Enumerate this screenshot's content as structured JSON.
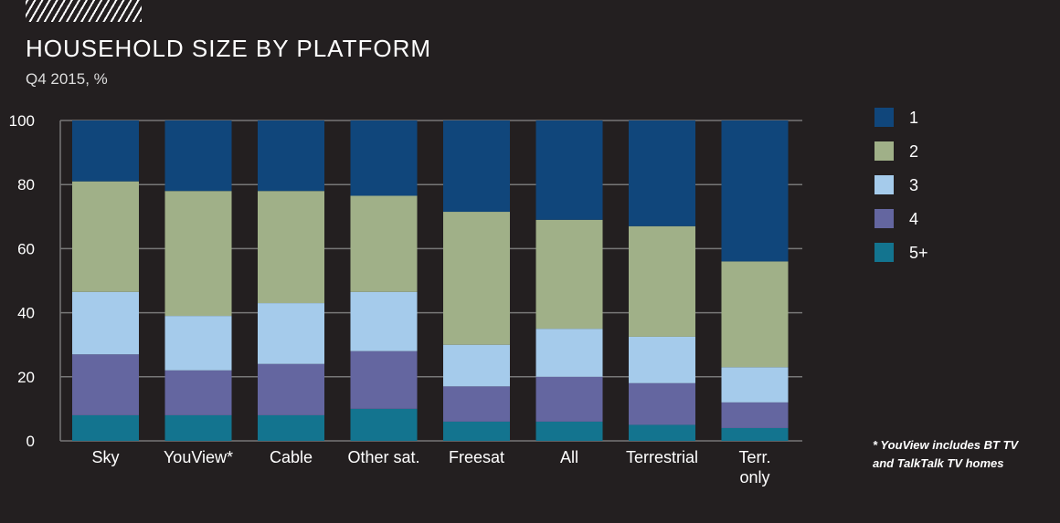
{
  "chart_data": {
    "type": "bar",
    "stacked": true,
    "title": "HOUSEHOLD SIZE BY PLATFORM",
    "subtitle": "Q4 2015, %",
    "categories": [
      "Sky",
      "YouView*",
      "Cable",
      "Other sat.",
      "Freesat",
      "All",
      "Terrestrial",
      "Terr. only"
    ],
    "series": [
      {
        "name": "5+",
        "color": "#13748f",
        "values": [
          8,
          8,
          8,
          10,
          6,
          6,
          5,
          4
        ]
      },
      {
        "name": "4",
        "color": "#6466a0",
        "values": [
          19,
          14,
          16,
          18,
          11,
          14,
          13,
          8
        ]
      },
      {
        "name": "3",
        "color": "#a5cbeb",
        "values": [
          19.5,
          17,
          19,
          18.5,
          13,
          15,
          14.5,
          11
        ]
      },
      {
        "name": "2",
        "color": "#a0b088",
        "values": [
          34.5,
          39,
          35,
          30,
          41.5,
          34,
          34.5,
          33
        ]
      },
      {
        "name": "1",
        "color": "#10467b",
        "values": [
          19,
          22,
          22,
          23.5,
          28.5,
          31,
          33,
          44
        ]
      }
    ],
    "legend_order": [
      "1",
      "2",
      "3",
      "4",
      "5+"
    ],
    "yticks": [
      0,
      20,
      40,
      60,
      80,
      100
    ],
    "ylim": [
      0,
      100
    ],
    "grid": true,
    "legend": "right",
    "note": [
      "* YouView includes BT TV",
      "and TalkTalk TV homes"
    ]
  }
}
